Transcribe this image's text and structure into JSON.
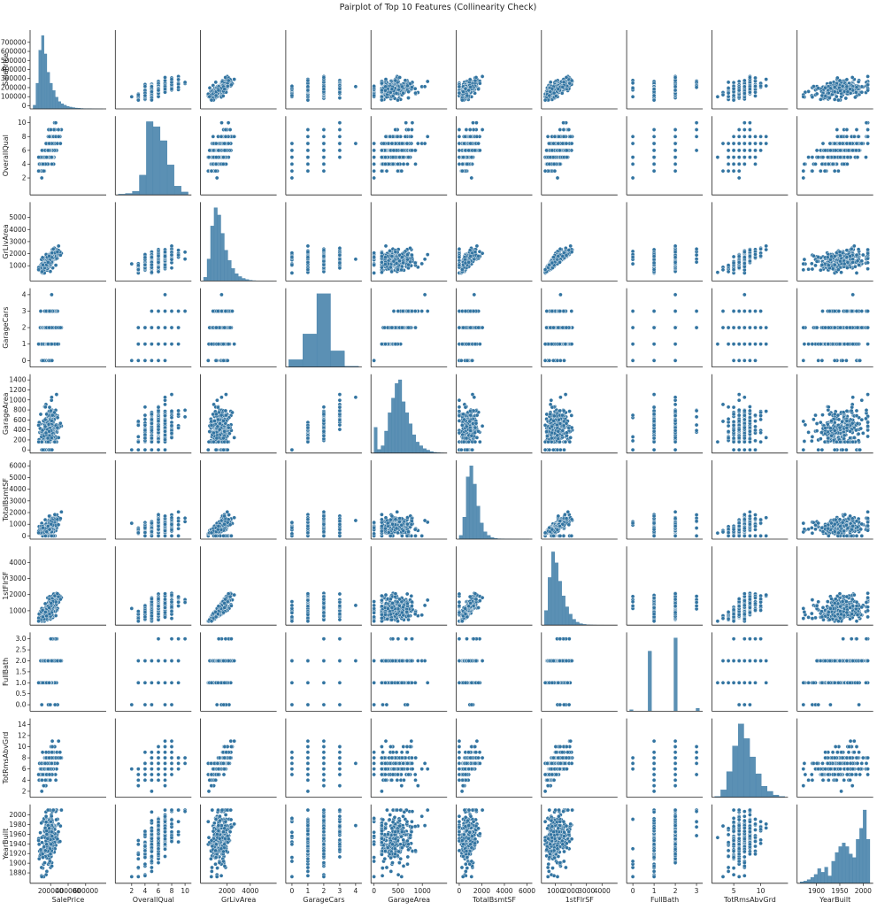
{
  "chart_data": {
    "type": "scatter",
    "title": "Pairplot of Top 10 Features (Collinearity Check)",
    "variables": [
      {
        "name": "SalePrice",
        "range": [
          0,
          800000
        ],
        "ticks": [
          0,
          100000,
          200000,
          300000,
          400000,
          500000,
          600000,
          700000
        ],
        "xticks": [
          200000,
          400000,
          600000
        ],
        "xtick_labels": [
          "200000",
          "400000",
          "600000"
        ],
        "hist": [
          0.05,
          0.35,
          0.8,
          1.0,
          0.75,
          0.5,
          0.35,
          0.25,
          0.16,
          0.1,
          0.07,
          0.05,
          0.035,
          0.025,
          0.018,
          0.012,
          0.009,
          0.006,
          0.004,
          0.003,
          0.002,
          0.001,
          0.0005,
          0.0003,
          0.0002
        ]
      },
      {
        "name": "OverallQual",
        "range": [
          0,
          10.5
        ],
        "ticks": [
          2,
          4,
          6,
          8,
          10
        ],
        "xticks": [
          2,
          4,
          6,
          8,
          10
        ],
        "xtick_labels": [
          "2",
          "4",
          "6",
          "8",
          "10"
        ],
        "hist": [
          0.01,
          0.02,
          0.05,
          0.27,
          1.0,
          0.93,
          0.74,
          0.41,
          0.12,
          0.04
        ]
      },
      {
        "name": "GrLivArea",
        "range": [
          0,
          6000
        ],
        "ticks": [
          1000,
          2000,
          3000,
          4000,
          5000
        ],
        "xticks": [
          2000,
          4000
        ],
        "xtick_labels": [
          "2000",
          "4000"
        ],
        "hist": [
          0.05,
          0.3,
          0.75,
          1.0,
          0.9,
          0.65,
          0.42,
          0.28,
          0.17,
          0.1,
          0.06,
          0.035,
          0.02,
          0.01,
          0.005,
          0.003,
          0.002,
          0.001,
          0.001,
          0.0005
        ]
      },
      {
        "name": "GarageCars",
        "range": [
          -0.2,
          4.2
        ],
        "ticks": [
          0,
          1,
          2,
          3,
          4
        ],
        "xticks": [
          0,
          1,
          2,
          3,
          4
        ],
        "xtick_labels": [
          "0",
          "1",
          "2",
          "3",
          "4"
        ],
        "hist": [
          0.1,
          0.45,
          1.0,
          0.22,
          0.01
        ]
      },
      {
        "name": "GarageArea",
        "range": [
          0,
          1450
        ],
        "ticks": [
          0,
          200,
          400,
          600,
          800,
          1000,
          1200,
          1400
        ],
        "xticks": [
          0,
          500,
          1000
        ],
        "xtick_labels": [
          "0",
          "500",
          "1000"
        ],
        "hist": [
          0.35,
          0.05,
          0.1,
          0.3,
          0.55,
          0.75,
          0.95,
          1.0,
          0.7,
          0.55,
          0.4,
          0.25,
          0.15,
          0.1,
          0.06,
          0.04,
          0.02,
          0.01,
          0.005,
          0.003
        ]
      },
      {
        "name": "TotalBsmtSF",
        "range": [
          0,
          6200
        ],
        "ticks": [
          0,
          1000,
          2000,
          3000,
          4000,
          5000,
          6000
        ],
        "xticks": [
          0,
          2000,
          4000,
          6000
        ],
        "xtick_labels": [
          "0",
          "2000",
          "4000",
          "6000"
        ],
        "hist": [
          0.05,
          0.3,
          0.85,
          1.0,
          0.75,
          0.45,
          0.22,
          0.1,
          0.05,
          0.02,
          0.01,
          0.005,
          0.003,
          0.001,
          0.001,
          0.0005,
          0.0003,
          0.0002,
          0.0001,
          0.0001
        ]
      },
      {
        "name": "1stFlrSF",
        "range": [
          300,
          4800
        ],
        "ticks": [
          1000,
          2000,
          3000,
          4000
        ],
        "xticks": [
          1000,
          2000,
          3000,
          4000
        ],
        "xtick_labels": [
          "1000",
          "2000",
          "3000",
          "4000"
        ],
        "hist": [
          0.2,
          0.65,
          1.0,
          0.85,
          0.6,
          0.4,
          0.25,
          0.15,
          0.08,
          0.04,
          0.02,
          0.01,
          0.005,
          0.003,
          0.002,
          0.001,
          0.001,
          0.0005,
          0.0003,
          0.0002
        ]
      },
      {
        "name": "FullBath",
        "range": [
          -0.15,
          3.15
        ],
        "ticks": [
          0,
          0.5,
          1,
          1.5,
          2,
          2.5,
          3
        ],
        "tick_labels": [
          "0.0",
          "0.5",
          "1.0",
          "1.5",
          "2.0",
          "2.5",
          "3.0"
        ],
        "xticks": [
          0,
          1,
          2,
          3
        ],
        "xtick_labels": [
          "0",
          "1",
          "2",
          "3"
        ],
        "hist": [
          0.02,
          0.0,
          0.0,
          0.0,
          0.0,
          0.82,
          0.0,
          0.0,
          0.0,
          0.0,
          0.0,
          0.0,
          1.0,
          0.0,
          0.0,
          0.0,
          0.0,
          0.0,
          0.04
        ]
      },
      {
        "name": "TotRmsAbvGrd",
        "range": [
          1.5,
          14.5
        ],
        "ticks": [
          2,
          4,
          6,
          8,
          10,
          12,
          14
        ],
        "xticks": [
          5,
          10
        ],
        "xtick_labels": [
          "5",
          "10"
        ],
        "hist": [
          0.01,
          0.1,
          0.35,
          0.7,
          1.0,
          0.8,
          0.55,
          0.32,
          0.15,
          0.08,
          0.03,
          0.01
        ]
      },
      {
        "name": "YearBuilt",
        "range": [
          1865,
          2015
        ],
        "ticks": [
          1880,
          1900,
          1920,
          1940,
          1960,
          1980,
          2000
        ],
        "xticks": [
          1900,
          1950,
          2000
        ],
        "xtick_labels": [
          "1900",
          "1950",
          "2000"
        ],
        "hist": [
          0.02,
          0.03,
          0.05,
          0.08,
          0.12,
          0.2,
          0.15,
          0.22,
          0.1,
          0.3,
          0.42,
          0.5,
          0.55,
          0.5,
          0.4,
          0.35,
          0.6,
          0.75,
          1.0,
          0.6
        ]
      }
    ],
    "point_color": "#3274a1",
    "point_edge": "#ffffff",
    "bar_color": "#3274a1",
    "diagonal": "histogram",
    "grid": false
  }
}
